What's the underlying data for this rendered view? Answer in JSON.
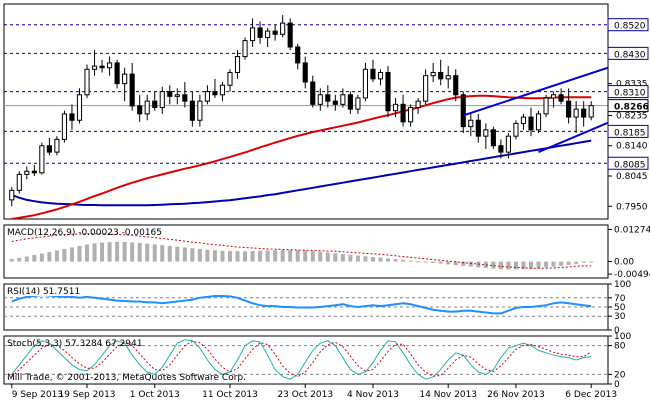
{
  "chart_data": {
    "type": "candlestick",
    "symbol_note": "Mill Trade, © 2001-2013, MetaQuotes Software Corp.",
    "x_tick_labels": [
      "9 Sep 2013",
      "19 Sep 2013",
      "1 Oct 2013",
      "11 Oct 2013",
      "23 Oct 2013",
      "4 Nov 2013",
      "14 Nov 2013",
      "26 Nov 2013",
      "6 Dec 2013"
    ],
    "price_axis": {
      "ylim": [
        0.791,
        0.8585
      ],
      "tick_labels": [
        "0.8520",
        "0.8430",
        "0.8335",
        "0.8310",
        "0.8266",
        "0.8235",
        "0.8185",
        "0.8140",
        "0.8085",
        "0.8045",
        "0.7950"
      ],
      "highlighted_levels": [
        {
          "label": "0.8520",
          "value": 0.852
        },
        {
          "label": "0.8430",
          "value": 0.843
        },
        {
          "label": "0.8310",
          "value": 0.831
        },
        {
          "label": "0.8266",
          "value": 0.8266,
          "current": true
        },
        {
          "label": "0.8185",
          "value": 0.8185
        },
        {
          "label": "0.8085",
          "value": 0.8085
        }
      ]
    },
    "candles": [
      {
        "o": 0.797,
        "h": 0.801,
        "l": 0.795,
        "c": 0.8
      },
      {
        "o": 0.8,
        "h": 0.806,
        "l": 0.799,
        "c": 0.805
      },
      {
        "o": 0.805,
        "h": 0.8075,
        "l": 0.8035,
        "c": 0.806
      },
      {
        "o": 0.806,
        "h": 0.808,
        "l": 0.8045,
        "c": 0.8055
      },
      {
        "o": 0.8055,
        "h": 0.815,
        "l": 0.805,
        "c": 0.814
      },
      {
        "o": 0.814,
        "h": 0.8165,
        "l": 0.811,
        "c": 0.812
      },
      {
        "o": 0.812,
        "h": 0.817,
        "l": 0.811,
        "c": 0.816
      },
      {
        "o": 0.816,
        "h": 0.825,
        "l": 0.815,
        "c": 0.824
      },
      {
        "o": 0.824,
        "h": 0.827,
        "l": 0.819,
        "c": 0.822
      },
      {
        "o": 0.822,
        "h": 0.832,
        "l": 0.821,
        "c": 0.83
      },
      {
        "o": 0.83,
        "h": 0.8395,
        "l": 0.829,
        "c": 0.838
      },
      {
        "o": 0.838,
        "h": 0.844,
        "l": 0.836,
        "c": 0.839
      },
      {
        "o": 0.839,
        "h": 0.841,
        "l": 0.837,
        "c": 0.8385
      },
      {
        "o": 0.8385,
        "h": 0.842,
        "l": 0.836,
        "c": 0.84
      },
      {
        "o": 0.84,
        "h": 0.841,
        "l": 0.832,
        "c": 0.8335
      },
      {
        "o": 0.8335,
        "h": 0.8385,
        "l": 0.828,
        "c": 0.8365
      },
      {
        "o": 0.8365,
        "h": 0.84,
        "l": 0.825,
        "c": 0.8265
      },
      {
        "o": 0.8265,
        "h": 0.83,
        "l": 0.8215,
        "c": 0.824
      },
      {
        "o": 0.824,
        "h": 0.83,
        "l": 0.822,
        "c": 0.828
      },
      {
        "o": 0.828,
        "h": 0.831,
        "l": 0.825,
        "c": 0.826
      },
      {
        "o": 0.826,
        "h": 0.8325,
        "l": 0.824,
        "c": 0.831
      },
      {
        "o": 0.831,
        "h": 0.833,
        "l": 0.827,
        "c": 0.8295
      },
      {
        "o": 0.8295,
        "h": 0.832,
        "l": 0.827,
        "c": 0.83
      },
      {
        "o": 0.83,
        "h": 0.834,
        "l": 0.826,
        "c": 0.828
      },
      {
        "o": 0.828,
        "h": 0.831,
        "l": 0.82,
        "c": 0.822
      },
      {
        "o": 0.822,
        "h": 0.83,
        "l": 0.82,
        "c": 0.828
      },
      {
        "o": 0.828,
        "h": 0.833,
        "l": 0.827,
        "c": 0.831
      },
      {
        "o": 0.831,
        "h": 0.835,
        "l": 0.829,
        "c": 0.83
      },
      {
        "o": 0.83,
        "h": 0.834,
        "l": 0.828,
        "c": 0.833
      },
      {
        "o": 0.833,
        "h": 0.838,
        "l": 0.831,
        "c": 0.837
      },
      {
        "o": 0.837,
        "h": 0.844,
        "l": 0.835,
        "c": 0.842
      },
      {
        "o": 0.842,
        "h": 0.848,
        "l": 0.841,
        "c": 0.847
      },
      {
        "o": 0.847,
        "h": 0.854,
        "l": 0.845,
        "c": 0.851
      },
      {
        "o": 0.851,
        "h": 0.853,
        "l": 0.846,
        "c": 0.848
      },
      {
        "o": 0.848,
        "h": 0.851,
        "l": 0.845,
        "c": 0.85
      },
      {
        "o": 0.85,
        "h": 0.852,
        "l": 0.847,
        "c": 0.849
      },
      {
        "o": 0.849,
        "h": 0.855,
        "l": 0.848,
        "c": 0.8525
      },
      {
        "o": 0.8525,
        "h": 0.854,
        "l": 0.844,
        "c": 0.845
      },
      {
        "o": 0.845,
        "h": 0.846,
        "l": 0.838,
        "c": 0.84
      },
      {
        "o": 0.84,
        "h": 0.842,
        "l": 0.832,
        "c": 0.834
      },
      {
        "o": 0.834,
        "h": 0.836,
        "l": 0.826,
        "c": 0.827
      },
      {
        "o": 0.827,
        "h": 0.832,
        "l": 0.825,
        "c": 0.83
      },
      {
        "o": 0.83,
        "h": 0.833,
        "l": 0.826,
        "c": 0.828
      },
      {
        "o": 0.828,
        "h": 0.83,
        "l": 0.825,
        "c": 0.827
      },
      {
        "o": 0.827,
        "h": 0.832,
        "l": 0.826,
        "c": 0.83
      },
      {
        "o": 0.83,
        "h": 0.831,
        "l": 0.824,
        "c": 0.8255
      },
      {
        "o": 0.8255,
        "h": 0.83,
        "l": 0.824,
        "c": 0.829
      },
      {
        "o": 0.829,
        "h": 0.84,
        "l": 0.828,
        "c": 0.838
      },
      {
        "o": 0.838,
        "h": 0.841,
        "l": 0.834,
        "c": 0.835
      },
      {
        "o": 0.835,
        "h": 0.838,
        "l": 0.833,
        "c": 0.837
      },
      {
        "o": 0.837,
        "h": 0.839,
        "l": 0.823,
        "c": 0.825
      },
      {
        "o": 0.825,
        "h": 0.829,
        "l": 0.823,
        "c": 0.827
      },
      {
        "o": 0.827,
        "h": 0.83,
        "l": 0.82,
        "c": 0.8215
      },
      {
        "o": 0.8215,
        "h": 0.827,
        "l": 0.82,
        "c": 0.826
      },
      {
        "o": 0.826,
        "h": 0.829,
        "l": 0.824,
        "c": 0.828
      },
      {
        "o": 0.828,
        "h": 0.838,
        "l": 0.827,
        "c": 0.836
      },
      {
        "o": 0.836,
        "h": 0.84,
        "l": 0.834,
        "c": 0.837
      },
      {
        "o": 0.837,
        "h": 0.841,
        "l": 0.833,
        "c": 0.835
      },
      {
        "o": 0.835,
        "h": 0.839,
        "l": 0.832,
        "c": 0.836
      },
      {
        "o": 0.836,
        "h": 0.838,
        "l": 0.828,
        "c": 0.83
      },
      {
        "o": 0.83,
        "h": 0.831,
        "l": 0.818,
        "c": 0.82
      },
      {
        "o": 0.82,
        "h": 0.824,
        "l": 0.817,
        "c": 0.822
      },
      {
        "o": 0.822,
        "h": 0.824,
        "l": 0.815,
        "c": 0.817
      },
      {
        "o": 0.817,
        "h": 0.821,
        "l": 0.813,
        "c": 0.819
      },
      {
        "o": 0.819,
        "h": 0.82,
        "l": 0.813,
        "c": 0.814
      },
      {
        "o": 0.814,
        "h": 0.816,
        "l": 0.81,
        "c": 0.812
      },
      {
        "o": 0.812,
        "h": 0.818,
        "l": 0.81,
        "c": 0.817
      },
      {
        "o": 0.817,
        "h": 0.822,
        "l": 0.816,
        "c": 0.821
      },
      {
        "o": 0.821,
        "h": 0.824,
        "l": 0.819,
        "c": 0.823
      },
      {
        "o": 0.823,
        "h": 0.826,
        "l": 0.817,
        "c": 0.819
      },
      {
        "o": 0.819,
        "h": 0.825,
        "l": 0.818,
        "c": 0.824
      },
      {
        "o": 0.824,
        "h": 0.83,
        "l": 0.823,
        "c": 0.829
      },
      {
        "o": 0.829,
        "h": 0.831,
        "l": 0.826,
        "c": 0.83
      },
      {
        "o": 0.83,
        "h": 0.832,
        "l": 0.827,
        "c": 0.828
      },
      {
        "o": 0.828,
        "h": 0.832,
        "l": 0.821,
        "c": 0.823
      },
      {
        "o": 0.823,
        "h": 0.828,
        "l": 0.818,
        "c": 0.8255
      },
      {
        "o": 0.8255,
        "h": 0.828,
        "l": 0.82,
        "c": 0.823
      },
      {
        "o": 0.823,
        "h": 0.828,
        "l": 0.822,
        "c": 0.8266
      }
    ],
    "ma_red": [
      0.791,
      0.7914,
      0.7918,
      0.7922,
      0.7928,
      0.7934,
      0.794,
      0.7948,
      0.7956,
      0.7964,
      0.7973,
      0.7982,
      0.799,
      0.7999,
      0.8008,
      0.8016,
      0.8024,
      0.8031,
      0.8038,
      0.8044,
      0.805,
      0.8056,
      0.8062,
      0.8068,
      0.8073,
      0.8079,
      0.8085,
      0.8091,
      0.8098,
      0.8105,
      0.8112,
      0.8119,
      0.8127,
      0.8135,
      0.8142,
      0.815,
      0.8157,
      0.8164,
      0.8171,
      0.8177,
      0.8183,
      0.8188,
      0.8193,
      0.8198,
      0.8203,
      0.8208,
      0.8213,
      0.8219,
      0.8225,
      0.8231,
      0.8236,
      0.8242,
      0.8248,
      0.8254,
      0.826,
      0.8267,
      0.8274,
      0.828,
      0.8286,
      0.8291,
      0.8294,
      0.8296,
      0.8297,
      0.8297,
      0.8296,
      0.8294,
      0.8292,
      0.8291,
      0.829,
      0.8289,
      0.8289,
      0.829,
      0.8291,
      0.8292,
      0.8292,
      0.8292,
      0.8292,
      0.8292
    ],
    "ma_blue": [
      0.7985,
      0.7977,
      0.797,
      0.7966,
      0.7962,
      0.796,
      0.7958,
      0.7957,
      0.7956,
      0.7955,
      0.7954,
      0.7954,
      0.7953,
      0.7953,
      0.7953,
      0.7953,
      0.7953,
      0.7953,
      0.7953,
      0.7954,
      0.7955,
      0.7956,
      0.7957,
      0.7958,
      0.796,
      0.7961,
      0.7963,
      0.7965,
      0.7967,
      0.7969,
      0.7972,
      0.7975,
      0.7978,
      0.7981,
      0.7985,
      0.7988,
      0.7992,
      0.7996,
      0.8,
      0.8004,
      0.8008,
      0.8012,
      0.8016,
      0.802,
      0.8024,
      0.8028,
      0.8032,
      0.8036,
      0.804,
      0.8044,
      0.8048,
      0.8052,
      0.8056,
      0.806,
      0.8064,
      0.8068,
      0.8072,
      0.8076,
      0.808,
      0.8084,
      0.8088,
      0.8092,
      0.8096,
      0.81,
      0.8104,
      0.8108,
      0.8112,
      0.8116,
      0.812,
      0.8124,
      0.8128,
      0.8132,
      0.8136,
      0.814,
      0.8144,
      0.8148,
      0.8152,
      0.8156
    ],
    "trendlines": [
      {
        "i1": 60,
        "v1": 0.8235,
        "i2": 85,
        "v2": 0.843,
        "color": "#0000cc"
      },
      {
        "i1": 70,
        "v1": 0.812,
        "i2": 85,
        "v2": 0.827,
        "color": "#0000cc"
      }
    ],
    "macd": {
      "label": "MACD(12,26,9) -0.00023 -0.00165",
      "ylim": [
        -0.0065,
        0.0145
      ],
      "tick_labels": [
        "0.01274",
        "0.00",
        "-0.00494"
      ],
      "tick_values": [
        0.01274,
        0.0,
        -0.00494
      ],
      "histogram": [
        0.001,
        0.0015,
        0.002,
        0.0026,
        0.0032,
        0.0038,
        0.0044,
        0.005,
        0.0056,
        0.0062,
        0.0068,
        0.0072,
        0.0075,
        0.0077,
        0.0078,
        0.0078,
        0.0076,
        0.0074,
        0.0071,
        0.0068,
        0.0065,
        0.0062,
        0.0059,
        0.0056,
        0.0053,
        0.005,
        0.0047,
        0.0045,
        0.0043,
        0.0042,
        0.0041,
        0.0041,
        0.0042,
        0.0043,
        0.0044,
        0.0045,
        0.0046,
        0.0046,
        0.0045,
        0.0044,
        0.0042,
        0.0039,
        0.0036,
        0.0033,
        0.003,
        0.0027,
        0.0024,
        0.0021,
        0.0018,
        0.0016,
        0.0013,
        0.001,
        0.0007,
        0.0004,
        0.0001,
        -0.0002,
        -0.0005,
        -0.0008,
        -0.0011,
        -0.0014,
        -0.0017,
        -0.002,
        -0.0023,
        -0.0026,
        -0.0028,
        -0.003,
        -0.0031,
        -0.0031,
        -0.003,
        -0.0028,
        -0.0026,
        -0.0023,
        -0.002,
        -0.0017,
        -0.0013,
        -0.0009,
        -0.0005,
        -0.0002
      ],
      "signal": [
        0.008,
        0.0085,
        0.009,
        0.0094,
        0.0098,
        0.0101,
        0.0104,
        0.0106,
        0.0108,
        0.0109,
        0.011,
        0.011,
        0.011,
        0.0109,
        0.0108,
        0.0106,
        0.0104,
        0.0101,
        0.0098,
        0.0095,
        0.0091,
        0.0088,
        0.0085,
        0.0081,
        0.0077,
        0.0074,
        0.007,
        0.0067,
        0.0064,
        0.0061,
        0.0058,
        0.0056,
        0.0054,
        0.0052,
        0.005,
        0.0049,
        0.0048,
        0.0047,
        0.0046,
        0.0045,
        0.0044,
        0.0043,
        0.0042,
        0.0041,
        0.0039,
        0.0037,
        0.0035,
        0.0033,
        0.0031,
        0.0029,
        0.0026,
        0.0023,
        0.002,
        0.0017,
        0.0014,
        0.0011,
        0.0008,
        0.0005,
        0.0002,
        -0.0001,
        -0.0004,
        -0.0007,
        -0.001,
        -0.0013,
        -0.0016,
        -0.0019,
        -0.0021,
        -0.0023,
        -0.0025,
        -0.0026,
        -0.0026,
        -0.0026,
        -0.0025,
        -0.0023,
        -0.0021,
        -0.0019,
        -0.0017,
        -0.00165
      ]
    },
    "rsi": {
      "label": "RSI(14) 51.7511",
      "ylim": [
        0,
        100
      ],
      "tick_labels": [
        "100",
        "70",
        "50",
        "30",
        "0"
      ],
      "tick_values": [
        100,
        70,
        50,
        30,
        0
      ],
      "values": [
        62,
        68,
        72,
        74,
        76,
        75,
        73,
        72,
        72,
        70,
        72,
        70,
        68,
        66,
        64,
        63,
        62,
        62,
        60,
        60,
        58,
        60,
        62,
        64,
        66,
        70,
        72,
        74,
        74,
        73,
        70,
        64,
        58,
        54,
        52,
        52,
        50,
        50,
        49,
        49,
        49,
        50,
        52,
        54,
        56,
        52,
        50,
        52,
        54,
        52,
        54,
        56,
        58,
        56,
        52,
        48,
        44,
        42,
        40,
        40,
        42,
        42,
        40,
        38,
        36,
        36,
        42,
        48,
        50,
        50,
        52,
        54,
        58,
        60,
        58,
        56,
        54,
        52
      ]
    },
    "stoch": {
      "label": "Stoch(5,3,3) 57.3284 67.2941",
      "ylim": [
        0,
        100
      ],
      "tick_labels": [
        "100",
        "80",
        "20",
        "0"
      ],
      "tick_values": [
        100,
        80,
        20,
        0
      ],
      "main": [
        20,
        40,
        60,
        80,
        90,
        85,
        70,
        55,
        40,
        30,
        28,
        40,
        60,
        80,
        90,
        85,
        60,
        40,
        25,
        20,
        35,
        60,
        85,
        92,
        90,
        75,
        50,
        30,
        20,
        25,
        50,
        80,
        90,
        88,
        60,
        30,
        15,
        10,
        20,
        45,
        70,
        85,
        90,
        80,
        55,
        30,
        20,
        25,
        45,
        70,
        90,
        88,
        65,
        40,
        20,
        10,
        15,
        30,
        50,
        65,
        60,
        40,
        25,
        20,
        30,
        55,
        75,
        80,
        85,
        80,
        70,
        65,
        60,
        57,
        55,
        50,
        55,
        57
      ],
      "signal": [
        15,
        30,
        45,
        60,
        75,
        82,
        80,
        70,
        55,
        42,
        33,
        33,
        45,
        62,
        78,
        86,
        80,
        63,
        45,
        30,
        28,
        40,
        60,
        80,
        89,
        86,
        72,
        52,
        35,
        25,
        32,
        52,
        72,
        86,
        82,
        62,
        38,
        22,
        15,
        25,
        45,
        67,
        82,
        87,
        78,
        58,
        38,
        27,
        30,
        48,
        68,
        83,
        83,
        63,
        40,
        25,
        16,
        18,
        33,
        50,
        60,
        56,
        42,
        30,
        26,
        38,
        55,
        72,
        80,
        82,
        78,
        72,
        66,
        62,
        60,
        57,
        57,
        67
      ]
    }
  }
}
